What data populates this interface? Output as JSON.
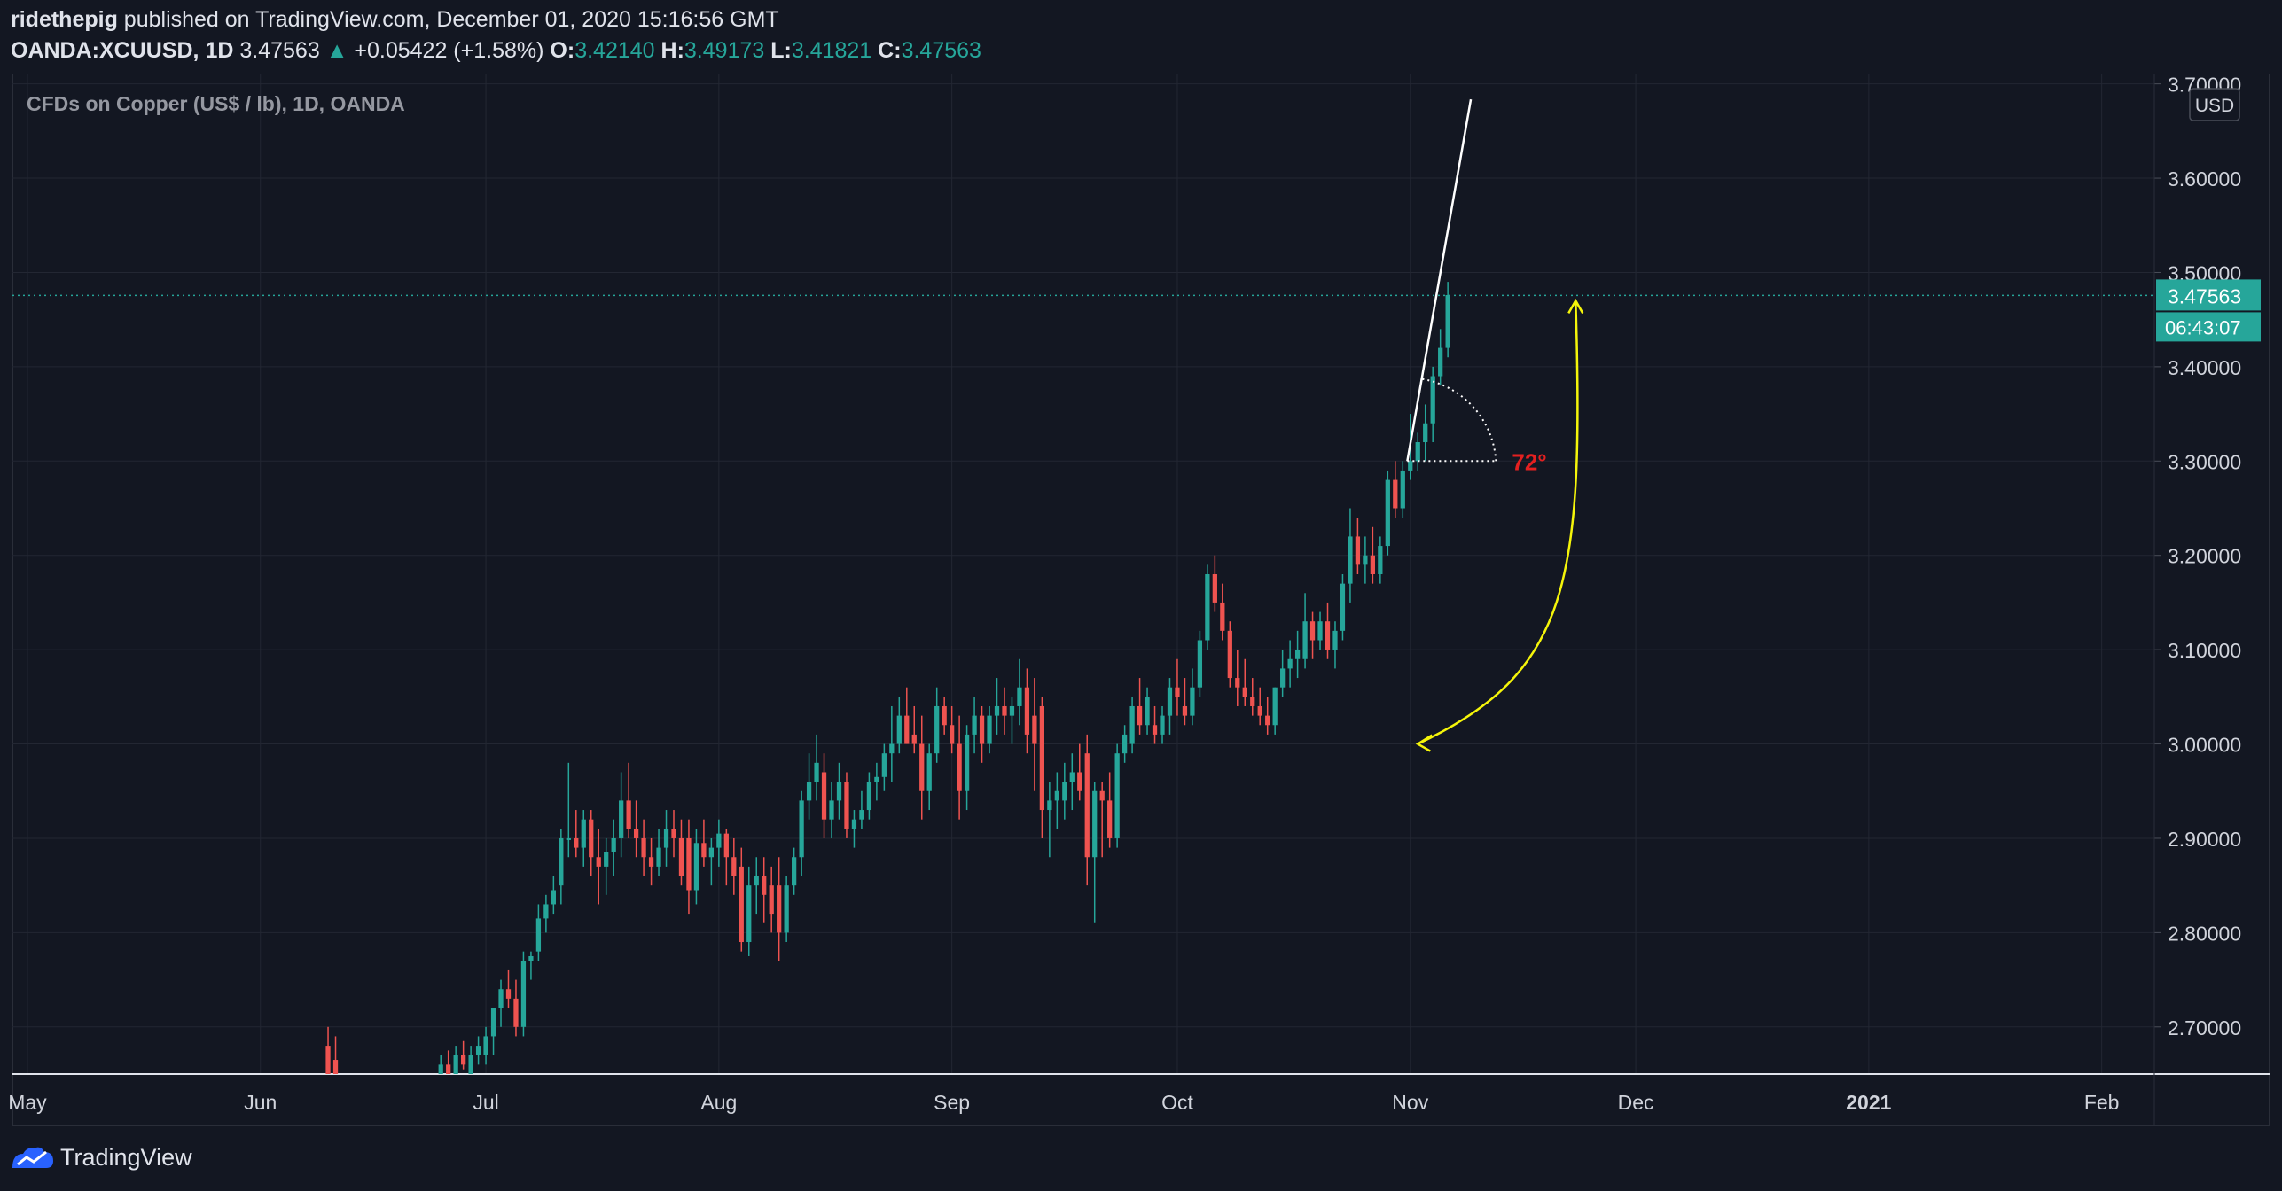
{
  "header": {
    "author": "ridethepig",
    "published_text": "published on TradingView.com, December 01, 2020 15:16:56 GMT",
    "symbol": "OANDA:XCUUSD, 1D",
    "last": "3.47563",
    "change_arrow": "▲",
    "change": "+0.05422 (+1.58%)",
    "o_label": "O:",
    "o": "3.42140",
    "h_label": "H:",
    "h": "3.49173",
    "l_label": "L:",
    "l": "3.41821",
    "c_label": "C:",
    "c": "3.47563"
  },
  "legend": "CFDs on Copper (US$ / lb), 1D, OANDA",
  "footer": {
    "brand": "TradingView"
  },
  "colors": {
    "up": "#26a69a",
    "down": "#ef5350",
    "background": "#131722",
    "grid": "#232733",
    "annotation_arc": "#f5f50a",
    "angle_text": "#e52020"
  },
  "chart_data": {
    "type": "candlestick",
    "title": "CFDs on Copper (US$ / lb), 1D, OANDA",
    "currency": "USD",
    "y_ticks": [
      "2.70000",
      "2.80000",
      "2.90000",
      "3.00000",
      "3.10000",
      "3.20000",
      "3.30000",
      "3.40000",
      "3.50000",
      "3.60000",
      "3.70000"
    ],
    "ylim": [
      2.65,
      3.71
    ],
    "x_ticks": [
      "May",
      "Jun",
      "Jul",
      "Aug",
      "Sep",
      "Oct",
      "Nov",
      "Dec",
      "2021",
      "Feb"
    ],
    "x_tick_days": [
      0,
      31,
      61,
      92,
      123,
      153,
      184,
      214,
      245,
      276
    ],
    "x_range_days": [
      -2,
      283
    ],
    "last_price": "3.47563",
    "last_price_value": 3.47563,
    "countdown": "06:43:07",
    "annotations": {
      "angle_label": "72°",
      "angle_degrees": 72
    },
    "candles": [
      {
        "d": 40,
        "o": 2.68,
        "h": 2.7,
        "l": 2.65,
        "c": 2.65
      },
      {
        "d": 41,
        "o": 2.665,
        "h": 2.69,
        "l": 2.65,
        "c": 2.65
      },
      {
        "d": 55,
        "o": 2.65,
        "h": 2.67,
        "l": 2.64,
        "c": 2.66
      },
      {
        "d": 56,
        "o": 2.66,
        "h": 2.675,
        "l": 2.645,
        "c": 2.65
      },
      {
        "d": 57,
        "o": 2.65,
        "h": 2.68,
        "l": 2.645,
        "c": 2.67
      },
      {
        "d": 58,
        "o": 2.67,
        "h": 2.685,
        "l": 2.655,
        "c": 2.66
      },
      {
        "d": 59,
        "o": 2.65,
        "h": 2.68,
        "l": 2.64,
        "c": 2.67
      },
      {
        "d": 60,
        "o": 2.67,
        "h": 2.69,
        "l": 2.66,
        "c": 2.68
      },
      {
        "d": 61,
        "o": 2.67,
        "h": 2.7,
        "l": 2.66,
        "c": 2.69
      },
      {
        "d": 62,
        "o": 2.69,
        "h": 2.72,
        "l": 2.67,
        "c": 2.72
      },
      {
        "d": 63,
        "o": 2.72,
        "h": 2.75,
        "l": 2.7,
        "c": 2.74
      },
      {
        "d": 64,
        "o": 2.74,
        "h": 2.76,
        "l": 2.72,
        "c": 2.73
      },
      {
        "d": 65,
        "o": 2.73,
        "h": 2.75,
        "l": 2.69,
        "c": 2.7
      },
      {
        "d": 66,
        "o": 2.7,
        "h": 2.78,
        "l": 2.69,
        "c": 2.77
      },
      {
        "d": 67,
        "o": 2.77,
        "h": 2.78,
        "l": 2.75,
        "c": 2.775
      },
      {
        "d": 68,
        "o": 2.78,
        "h": 2.83,
        "l": 2.77,
        "c": 2.815
      },
      {
        "d": 69,
        "o": 2.815,
        "h": 2.84,
        "l": 2.8,
        "c": 2.83
      },
      {
        "d": 70,
        "o": 2.83,
        "h": 2.86,
        "l": 2.82,
        "c": 2.845
      },
      {
        "d": 71,
        "o": 2.85,
        "h": 2.91,
        "l": 2.83,
        "c": 2.9
      },
      {
        "d": 72,
        "o": 2.9,
        "h": 2.98,
        "l": 2.88,
        "c": 2.9
      },
      {
        "d": 73,
        "o": 2.9,
        "h": 2.93,
        "l": 2.88,
        "c": 2.89
      },
      {
        "d": 74,
        "o": 2.89,
        "h": 2.93,
        "l": 2.87,
        "c": 2.92
      },
      {
        "d": 75,
        "o": 2.92,
        "h": 2.93,
        "l": 2.86,
        "c": 2.88
      },
      {
        "d": 76,
        "o": 2.88,
        "h": 2.91,
        "l": 2.83,
        "c": 2.87
      },
      {
        "d": 77,
        "o": 2.87,
        "h": 2.9,
        "l": 2.84,
        "c": 2.885
      },
      {
        "d": 78,
        "o": 2.885,
        "h": 2.92,
        "l": 2.86,
        "c": 2.9
      },
      {
        "d": 79,
        "o": 2.9,
        "h": 2.97,
        "l": 2.88,
        "c": 2.94
      },
      {
        "d": 80,
        "o": 2.94,
        "h": 2.98,
        "l": 2.9,
        "c": 2.91
      },
      {
        "d": 81,
        "o": 2.91,
        "h": 2.94,
        "l": 2.88,
        "c": 2.9
      },
      {
        "d": 82,
        "o": 2.9,
        "h": 2.92,
        "l": 2.86,
        "c": 2.88
      },
      {
        "d": 83,
        "o": 2.88,
        "h": 2.9,
        "l": 2.85,
        "c": 2.87
      },
      {
        "d": 84,
        "o": 2.87,
        "h": 2.91,
        "l": 2.86,
        "c": 2.89
      },
      {
        "d": 85,
        "o": 2.89,
        "h": 2.93,
        "l": 2.87,
        "c": 2.91
      },
      {
        "d": 86,
        "o": 2.91,
        "h": 2.93,
        "l": 2.88,
        "c": 2.9
      },
      {
        "d": 87,
        "o": 2.9,
        "h": 2.92,
        "l": 2.85,
        "c": 2.86
      },
      {
        "d": 88,
        "o": 2.9,
        "h": 2.92,
        "l": 2.82,
        "c": 2.845
      },
      {
        "d": 89,
        "o": 2.845,
        "h": 2.91,
        "l": 2.83,
        "c": 2.895
      },
      {
        "d": 90,
        "o": 2.895,
        "h": 2.92,
        "l": 2.87,
        "c": 2.88
      },
      {
        "d": 91,
        "o": 2.88,
        "h": 2.9,
        "l": 2.85,
        "c": 2.89
      },
      {
        "d": 92,
        "o": 2.89,
        "h": 2.92,
        "l": 2.87,
        "c": 2.905
      },
      {
        "d": 93,
        "o": 2.905,
        "h": 2.91,
        "l": 2.85,
        "c": 2.88
      },
      {
        "d": 94,
        "o": 2.88,
        "h": 2.9,
        "l": 2.84,
        "c": 2.86
      },
      {
        "d": 95,
        "o": 2.87,
        "h": 2.89,
        "l": 2.78,
        "c": 2.79
      },
      {
        "d": 96,
        "o": 2.79,
        "h": 2.87,
        "l": 2.775,
        "c": 2.85
      },
      {
        "d": 97,
        "o": 2.85,
        "h": 2.88,
        "l": 2.82,
        "c": 2.86
      },
      {
        "d": 98,
        "o": 2.86,
        "h": 2.88,
        "l": 2.81,
        "c": 2.84
      },
      {
        "d": 99,
        "o": 2.85,
        "h": 2.87,
        "l": 2.8,
        "c": 2.82
      },
      {
        "d": 100,
        "o": 2.85,
        "h": 2.88,
        "l": 2.77,
        "c": 2.8
      },
      {
        "d": 101,
        "o": 2.8,
        "h": 2.86,
        "l": 2.79,
        "c": 2.85
      },
      {
        "d": 102,
        "o": 2.85,
        "h": 2.89,
        "l": 2.84,
        "c": 2.88
      },
      {
        "d": 103,
        "o": 2.88,
        "h": 2.95,
        "l": 2.86,
        "c": 2.94
      },
      {
        "d": 104,
        "o": 2.94,
        "h": 2.99,
        "l": 2.92,
        "c": 2.96
      },
      {
        "d": 105,
        "o": 2.96,
        "h": 3.01,
        "l": 2.94,
        "c": 2.98
      },
      {
        "d": 106,
        "o": 2.97,
        "h": 2.99,
        "l": 2.9,
        "c": 2.92
      },
      {
        "d": 107,
        "o": 2.92,
        "h": 2.96,
        "l": 2.9,
        "c": 2.94
      },
      {
        "d": 108,
        "o": 2.94,
        "h": 2.98,
        "l": 2.92,
        "c": 2.96
      },
      {
        "d": 109,
        "o": 2.96,
        "h": 2.97,
        "l": 2.9,
        "c": 2.91
      },
      {
        "d": 110,
        "o": 2.91,
        "h": 2.93,
        "l": 2.89,
        "c": 2.92
      },
      {
        "d": 111,
        "o": 2.92,
        "h": 2.95,
        "l": 2.91,
        "c": 2.93
      },
      {
        "d": 112,
        "o": 2.93,
        "h": 2.97,
        "l": 2.92,
        "c": 2.96
      },
      {
        "d": 113,
        "o": 2.96,
        "h": 2.98,
        "l": 2.94,
        "c": 2.965
      },
      {
        "d": 114,
        "o": 2.965,
        "h": 3.0,
        "l": 2.95,
        "c": 2.99
      },
      {
        "d": 115,
        "o": 2.99,
        "h": 3.04,
        "l": 2.96,
        "c": 3.0
      },
      {
        "d": 116,
        "o": 3.0,
        "h": 3.05,
        "l": 2.99,
        "c": 3.03
      },
      {
        "d": 117,
        "o": 3.03,
        "h": 3.06,
        "l": 3.0,
        "c": 3.0
      },
      {
        "d": 118,
        "o": 3.01,
        "h": 3.04,
        "l": 2.99,
        "c": 3.0
      },
      {
        "d": 119,
        "o": 3.0,
        "h": 3.03,
        "l": 2.92,
        "c": 2.95
      },
      {
        "d": 120,
        "o": 2.95,
        "h": 3.0,
        "l": 2.93,
        "c": 2.99
      },
      {
        "d": 121,
        "o": 2.99,
        "h": 3.06,
        "l": 2.98,
        "c": 3.04
      },
      {
        "d": 122,
        "o": 3.04,
        "h": 3.05,
        "l": 3.01,
        "c": 3.02
      },
      {
        "d": 123,
        "o": 3.02,
        "h": 3.04,
        "l": 2.99,
        "c": 3.0
      },
      {
        "d": 124,
        "o": 3.0,
        "h": 3.03,
        "l": 2.92,
        "c": 2.95
      },
      {
        "d": 125,
        "o": 2.95,
        "h": 3.02,
        "l": 2.93,
        "c": 3.01
      },
      {
        "d": 126,
        "o": 3.01,
        "h": 3.05,
        "l": 2.99,
        "c": 3.03
      },
      {
        "d": 127,
        "o": 3.03,
        "h": 3.04,
        "l": 2.98,
        "c": 3.0
      },
      {
        "d": 128,
        "o": 3.0,
        "h": 3.04,
        "l": 2.99,
        "c": 3.03
      },
      {
        "d": 129,
        "o": 3.03,
        "h": 3.07,
        "l": 3.01,
        "c": 3.04
      },
      {
        "d": 130,
        "o": 3.04,
        "h": 3.06,
        "l": 3.01,
        "c": 3.03
      },
      {
        "d": 131,
        "o": 3.03,
        "h": 3.05,
        "l": 3.0,
        "c": 3.04
      },
      {
        "d": 132,
        "o": 3.04,
        "h": 3.09,
        "l": 3.02,
        "c": 3.06
      },
      {
        "d": 133,
        "o": 3.06,
        "h": 3.08,
        "l": 2.99,
        "c": 3.01
      },
      {
        "d": 134,
        "o": 3.03,
        "h": 3.07,
        "l": 2.95,
        "c": 3.0
      },
      {
        "d": 135,
        "o": 3.04,
        "h": 3.05,
        "l": 2.9,
        "c": 2.93
      },
      {
        "d": 136,
        "o": 2.93,
        "h": 2.96,
        "l": 2.88,
        "c": 2.94
      },
      {
        "d": 137,
        "o": 2.94,
        "h": 2.97,
        "l": 2.91,
        "c": 2.95
      },
      {
        "d": 138,
        "o": 2.94,
        "h": 2.98,
        "l": 2.92,
        "c": 2.96
      },
      {
        "d": 139,
        "o": 2.96,
        "h": 2.99,
        "l": 2.93,
        "c": 2.97
      },
      {
        "d": 140,
        "o": 2.97,
        "h": 3.0,
        "l": 2.94,
        "c": 2.95
      },
      {
        "d": 141,
        "o": 2.99,
        "h": 3.01,
        "l": 2.85,
        "c": 2.88
      },
      {
        "d": 142,
        "o": 2.88,
        "h": 2.96,
        "l": 2.81,
        "c": 2.95
      },
      {
        "d": 143,
        "o": 2.95,
        "h": 2.96,
        "l": 2.88,
        "c": 2.94
      },
      {
        "d": 144,
        "o": 2.94,
        "h": 2.97,
        "l": 2.89,
        "c": 2.9
      },
      {
        "d": 145,
        "o": 2.9,
        "h": 3.0,
        "l": 2.89,
        "c": 2.99
      },
      {
        "d": 146,
        "o": 2.99,
        "h": 3.02,
        "l": 2.98,
        "c": 3.01
      },
      {
        "d": 147,
        "o": 3.0,
        "h": 3.05,
        "l": 2.99,
        "c": 3.04
      },
      {
        "d": 148,
        "o": 3.04,
        "h": 3.07,
        "l": 3.01,
        "c": 3.02
      },
      {
        "d": 149,
        "o": 3.02,
        "h": 3.06,
        "l": 3.01,
        "c": 3.05
      },
      {
        "d": 150,
        "o": 3.02,
        "h": 3.04,
        "l": 3.0,
        "c": 3.01
      },
      {
        "d": 151,
        "o": 3.01,
        "h": 3.04,
        "l": 3.0,
        "c": 3.03
      },
      {
        "d": 152,
        "o": 3.03,
        "h": 3.07,
        "l": 3.01,
        "c": 3.06
      },
      {
        "d": 153,
        "o": 3.06,
        "h": 3.09,
        "l": 3.03,
        "c": 3.05
      },
      {
        "d": 154,
        "o": 3.04,
        "h": 3.07,
        "l": 3.02,
        "c": 3.03
      },
      {
        "d": 155,
        "o": 3.03,
        "h": 3.08,
        "l": 3.02,
        "c": 3.06
      },
      {
        "d": 156,
        "o": 3.06,
        "h": 3.12,
        "l": 3.05,
        "c": 3.11
      },
      {
        "d": 157,
        "o": 3.11,
        "h": 3.19,
        "l": 3.1,
        "c": 3.18
      },
      {
        "d": 158,
        "o": 3.18,
        "h": 3.2,
        "l": 3.14,
        "c": 3.15
      },
      {
        "d": 159,
        "o": 3.15,
        "h": 3.17,
        "l": 3.11,
        "c": 3.12
      },
      {
        "d": 160,
        "o": 3.12,
        "h": 3.13,
        "l": 3.06,
        "c": 3.07
      },
      {
        "d": 161,
        "o": 3.07,
        "h": 3.1,
        "l": 3.04,
        "c": 3.06
      },
      {
        "d": 162,
        "o": 3.06,
        "h": 3.09,
        "l": 3.04,
        "c": 3.05
      },
      {
        "d": 163,
        "o": 3.05,
        "h": 3.07,
        "l": 3.03,
        "c": 3.04
      },
      {
        "d": 164,
        "o": 3.04,
        "h": 3.06,
        "l": 3.02,
        "c": 3.03
      },
      {
        "d": 165,
        "o": 3.03,
        "h": 3.05,
        "l": 3.01,
        "c": 3.02
      },
      {
        "d": 166,
        "o": 3.02,
        "h": 3.06,
        "l": 3.01,
        "c": 3.06
      },
      {
        "d": 167,
        "o": 3.06,
        "h": 3.1,
        "l": 3.05,
        "c": 3.08
      },
      {
        "d": 168,
        "o": 3.08,
        "h": 3.11,
        "l": 3.06,
        "c": 3.09
      },
      {
        "d": 169,
        "o": 3.09,
        "h": 3.12,
        "l": 3.07,
        "c": 3.1
      },
      {
        "d": 170,
        "o": 3.09,
        "h": 3.16,
        "l": 3.08,
        "c": 3.13
      },
      {
        "d": 171,
        "o": 3.13,
        "h": 3.14,
        "l": 3.09,
        "c": 3.11
      },
      {
        "d": 172,
        "o": 3.11,
        "h": 3.14,
        "l": 3.1,
        "c": 3.13
      },
      {
        "d": 173,
        "o": 3.13,
        "h": 3.15,
        "l": 3.09,
        "c": 3.1
      },
      {
        "d": 174,
        "o": 3.1,
        "h": 3.13,
        "l": 3.08,
        "c": 3.12
      },
      {
        "d": 175,
        "o": 3.12,
        "h": 3.18,
        "l": 3.11,
        "c": 3.17
      },
      {
        "d": 176,
        "o": 3.17,
        "h": 3.25,
        "l": 3.15,
        "c": 3.22
      },
      {
        "d": 177,
        "o": 3.22,
        "h": 3.24,
        "l": 3.18,
        "c": 3.19
      },
      {
        "d": 178,
        "o": 3.19,
        "h": 3.22,
        "l": 3.17,
        "c": 3.2
      },
      {
        "d": 179,
        "o": 3.2,
        "h": 3.23,
        "l": 3.17,
        "c": 3.18
      },
      {
        "d": 180,
        "o": 3.18,
        "h": 3.22,
        "l": 3.17,
        "c": 3.21
      },
      {
        "d": 181,
        "o": 3.21,
        "h": 3.29,
        "l": 3.2,
        "c": 3.28
      },
      {
        "d": 182,
        "o": 3.28,
        "h": 3.3,
        "l": 3.24,
        "c": 3.25
      },
      {
        "d": 183,
        "o": 3.25,
        "h": 3.3,
        "l": 3.24,
        "c": 3.29
      },
      {
        "d": 184,
        "o": 3.29,
        "h": 3.35,
        "l": 3.28,
        "c": 3.3
      },
      {
        "d": 185,
        "o": 3.3,
        "h": 3.33,
        "l": 3.29,
        "c": 3.32
      },
      {
        "d": 186,
        "o": 3.32,
        "h": 3.36,
        "l": 3.3,
        "c": 3.34
      },
      {
        "d": 187,
        "o": 3.34,
        "h": 3.4,
        "l": 3.32,
        "c": 3.39
      },
      {
        "d": 188,
        "o": 3.39,
        "h": 3.44,
        "l": 3.38,
        "c": 3.42
      },
      {
        "d": 189,
        "o": 3.42,
        "h": 3.49,
        "l": 3.41,
        "c": 3.476
      }
    ]
  }
}
